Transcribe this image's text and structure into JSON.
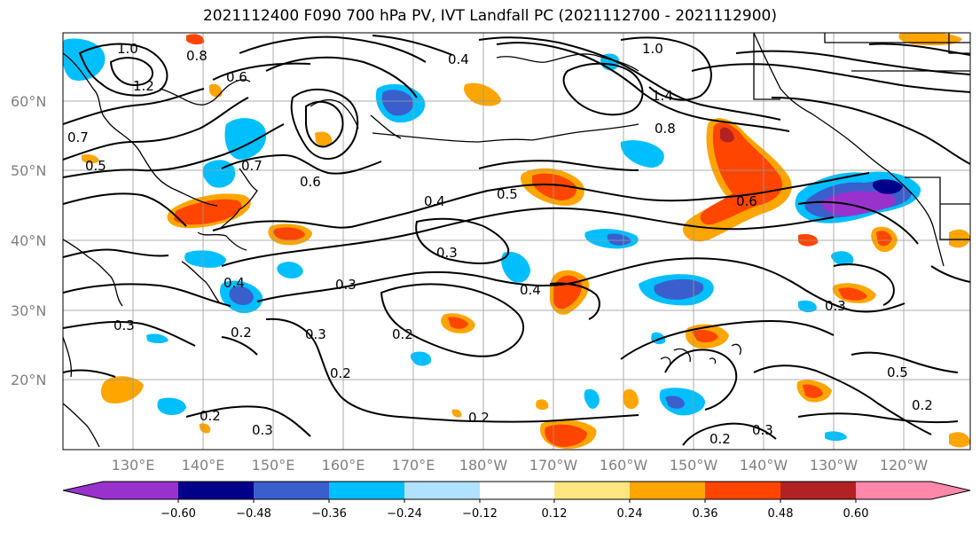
{
  "title": "2021112400 F090 700 hPa PV, IVT Landfall PC (2021112700 - 2021112900)",
  "lat_labels": [
    "60°N",
    "50°N",
    "40°N",
    "30°N",
    "20°N"
  ],
  "lon_labels": [
    "130°E",
    "140°E",
    "150°E",
    "160°E",
    "170°E",
    "180°W",
    "170°W",
    "160°W",
    "150°W",
    "140°W",
    "130°W",
    "120°W"
  ],
  "contour_labels": [
    "1.0",
    "1.2",
    "0.6",
    "0.8",
    "0.4",
    "1.0",
    "1.4",
    "0.8",
    "0.7",
    "0.5",
    "0.7",
    "0.6",
    "0.4",
    "0.5",
    "0.6",
    "0.3",
    "0.3",
    "0.4",
    "0.3",
    "0.3",
    "0.2",
    "0.2",
    "0.2",
    "0.2",
    "0.3",
    "0.2",
    "0.2",
    "0.3",
    "0.5",
    "0.2",
    "0.3",
    "0.4"
  ],
  "colorbar": {
    "ticks": [
      "−0.60",
      "−0.48",
      "−0.36",
      "−0.24",
      "−0.12",
      "0.12",
      "0.24",
      "0.36",
      "0.48",
      "0.60"
    ],
    "colors": [
      "#9932cc",
      "#00008b",
      "#3a5fcd",
      "#00bfff",
      "#b0e2ff",
      "#ffffff",
      "#ffe680",
      "#ffa500",
      "#ff4500",
      "#b22222",
      "#ff88aa"
    ]
  }
}
